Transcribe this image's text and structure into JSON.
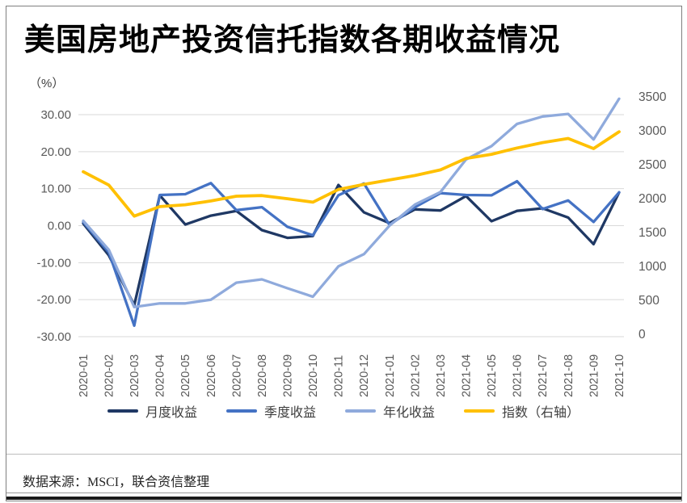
{
  "title": "美国房地产投资信托指数各期收益情况",
  "percent_label": "（%）",
  "source": "数据来源：MSCI，联合资信整理",
  "colors": {
    "monthly": "#1f3864",
    "quarterly": "#4472c4",
    "annualized": "#8faadc",
    "index": "#ffc000",
    "gridline": "#d9d9d9",
    "axis_text": "#595959",
    "title_text": "#000000",
    "legend_text": "#404040",
    "frame_border": "#7f7f7f",
    "bottom_bar": "#1a1a1a"
  },
  "chart_data": {
    "type": "line",
    "title": "美国房地产投资信托指数各期收益情况",
    "grid": true,
    "legend_position": "bottom",
    "categories": [
      "2020-01",
      "2020-02",
      "2020-03",
      "2020-04",
      "2020-05",
      "2020-06",
      "2020-07",
      "2020-08",
      "2020-09",
      "2020-10",
      "2020-11",
      "2020-12",
      "2021-01",
      "2021-02",
      "2021-03",
      "2021-04",
      "2021-05",
      "2021-06",
      "2021-07",
      "2021-08",
      "2021-09",
      "2021-10"
    ],
    "series": [
      {
        "id": "monthly-return",
        "name": "月度收益",
        "axis": "left",
        "color": "#1f3864",
        "width": 3.3,
        "values": [
          0.6,
          -8.0,
          -21.5,
          8.2,
          0.3,
          2.7,
          4.0,
          -1.2,
          -3.3,
          -2.8,
          11.0,
          3.6,
          0.7,
          4.4,
          4.1,
          8.0,
          1.2,
          4.0,
          4.7,
          2.2,
          -5.0,
          9.0
        ]
      },
      {
        "id": "quarterly-return",
        "name": "季度收益",
        "axis": "left",
        "color": "#4472c4",
        "width": 3.3,
        "values": [
          1.0,
          -7.2,
          -27.0,
          8.3,
          8.5,
          11.5,
          4.2,
          5.0,
          -0.3,
          -2.6,
          8.2,
          11.4,
          0.2,
          5.0,
          8.8,
          8.3,
          8.2,
          12.0,
          4.5,
          6.8,
          1.0,
          9.0
        ]
      },
      {
        "id": "annualized-return",
        "name": "年化收益",
        "axis": "left",
        "color": "#8faadc",
        "width": 3.3,
        "values": [
          1.3,
          -6.5,
          -22.0,
          -21.0,
          -21.0,
          -20.0,
          -15.4,
          -14.5,
          -16.9,
          -19.2,
          -11.0,
          -7.7,
          0.0,
          5.7,
          9.1,
          17.9,
          21.5,
          27.5,
          29.5,
          30.2,
          23.3,
          34.3
        ]
      },
      {
        "id": "index-right-axis",
        "name": "指数（右轴）",
        "axis": "right",
        "color": "#ffc000",
        "width": 3.8,
        "values": [
          2600,
          2390,
          1900,
          2050,
          2080,
          2140,
          2215,
          2225,
          2175,
          2120,
          2320,
          2400,
          2470,
          2540,
          2630,
          2810,
          2875,
          2975,
          3060,
          3125,
          2965,
          3230
        ]
      }
    ],
    "left_axis": {
      "unit": "%",
      "min": -30,
      "max": 30,
      "ticks": [
        30,
        20,
        10,
        0,
        -10,
        -20,
        -30
      ],
      "tick_labels": [
        "30.00",
        "20.00",
        "10.00",
        "0.00",
        "-10.00",
        "-20.00",
        "-30.00"
      ]
    },
    "right_axis": {
      "min": 0,
      "max": 3500,
      "ticks": [
        3500,
        3000,
        2500,
        2000,
        1500,
        1000,
        500,
        0
      ],
      "tick_labels": [
        "3500",
        "3000",
        "2500",
        "2000",
        "1500",
        "1000",
        "500",
        "0"
      ]
    }
  }
}
